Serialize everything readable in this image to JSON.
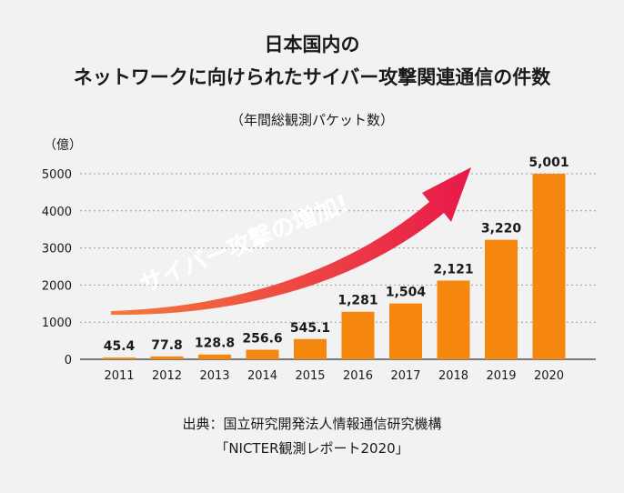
{
  "title_line1": "日本国内の",
  "title_line2": "ネットワークに向けられたサイバー攻撃関連通信の件数",
  "subtitle": "（年間総観測パケット数）",
  "source_line1": "出典：国立研究開発法人情報通信研究機構",
  "source_line2": "「NICTER観測レポート2020」",
  "annotation": "サイバー攻撃の増加!",
  "colors": {
    "bar": "#f5870f",
    "arrow_start": "#f47a3a",
    "arrow_end": "#e8184a"
  },
  "chart_data": {
    "type": "bar",
    "categories": [
      "2011",
      "2012",
      "2013",
      "2014",
      "2015",
      "2016",
      "2017",
      "2018",
      "2019",
      "2020"
    ],
    "values": [
      45.4,
      77.8,
      128.8,
      256.6,
      545.1,
      1281,
      1504,
      2121,
      3220,
      5001
    ],
    "value_labels": [
      "45.4",
      "77.8",
      "128.8",
      "256.6",
      "545.1",
      "1,281",
      "1,504",
      "2,121",
      "3,220",
      "5,001"
    ],
    "ylabel": "（億）",
    "ylim": [
      0,
      5000
    ],
    "yticks": [
      0,
      1000,
      2000,
      3000,
      4000,
      5000
    ],
    "grid": true
  }
}
